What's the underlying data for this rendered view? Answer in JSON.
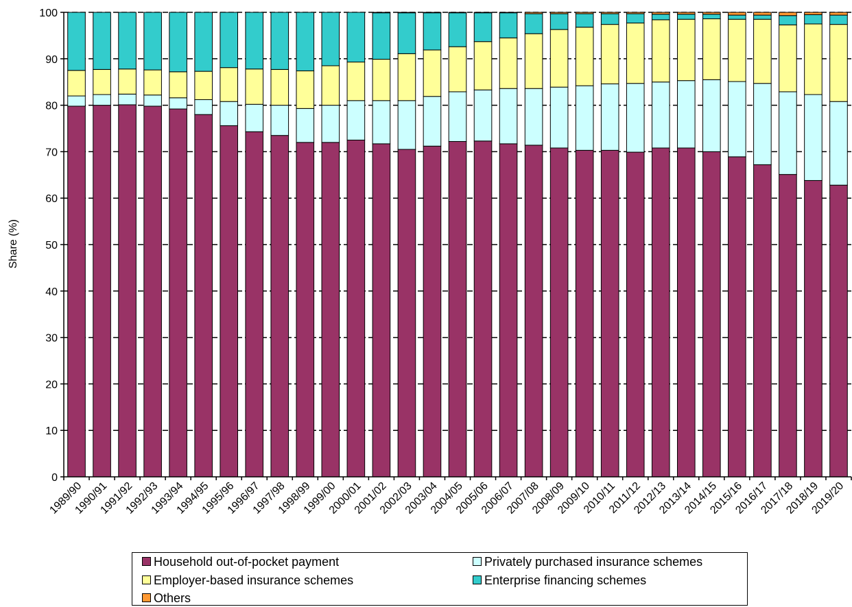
{
  "chart_data": {
    "type": "bar",
    "stacked": true,
    "ylabel": "Share (%)",
    "xlabel": "",
    "ylim": [
      0,
      100
    ],
    "yticks": [
      0,
      10,
      20,
      30,
      40,
      50,
      60,
      70,
      80,
      90,
      100
    ],
    "grid": "horizontal dashed",
    "legend_position": "bottom",
    "categories": [
      "1989/90",
      "1990/91",
      "1991/92",
      "1992/93",
      "1993/94",
      "1994/95",
      "1995/96",
      "1996/97",
      "1997/98",
      "1998/99",
      "1999/00",
      "2000/01",
      "2001/02",
      "2002/03",
      "2003/04",
      "2004/05",
      "2005/06",
      "2006/07",
      "2007/08",
      "2008/09",
      "2009/10",
      "2010/11",
      "2011/12",
      "2012/13",
      "2013/14",
      "2014/15",
      "2015/16",
      "2016/17",
      "2017/18",
      "2018/19",
      "2019/20"
    ],
    "series": [
      {
        "name": "Household out-of-pocket payment",
        "color": "#993366",
        "values": [
          79.8,
          80.0,
          80.1,
          79.8,
          79.2,
          78.0,
          75.6,
          74.3,
          73.5,
          72.0,
          72.0,
          72.5,
          71.7,
          70.5,
          71.2,
          72.2,
          72.3,
          71.7,
          71.4,
          70.8,
          70.3,
          70.3,
          69.9,
          70.8,
          70.8,
          70.0,
          68.9,
          67.2,
          65.1,
          63.8,
          62.8
        ]
      },
      {
        "name": "Privately purchased insurance schemes",
        "color": "#CCFFFF",
        "values": [
          2.2,
          2.3,
          2.3,
          2.4,
          2.4,
          3.2,
          5.2,
          5.9,
          6.5,
          7.3,
          8.0,
          8.5,
          9.3,
          10.5,
          10.7,
          10.7,
          11.0,
          11.9,
          12.2,
          13.1,
          13.9,
          14.3,
          14.8,
          14.2,
          14.5,
          15.5,
          16.2,
          17.5,
          17.8,
          18.5,
          18.0
        ]
      },
      {
        "name": "Employer-based insurance schemes",
        "color": "#FFFF99",
        "values": [
          5.5,
          5.4,
          5.4,
          5.4,
          5.6,
          6.1,
          7.3,
          7.6,
          7.7,
          8.1,
          8.5,
          8.3,
          8.9,
          10.1,
          10.0,
          9.7,
          10.4,
          10.9,
          11.8,
          12.4,
          12.6,
          12.8,
          13.0,
          13.4,
          13.2,
          13.1,
          13.4,
          13.8,
          14.4,
          15.2,
          16.6
        ]
      },
      {
        "name": "Enterprise financing schemes",
        "color": "#33CCCC",
        "values": [
          12.5,
          12.3,
          12.2,
          12.4,
          12.8,
          12.7,
          11.9,
          12.2,
          12.3,
          12.6,
          11.5,
          10.7,
          10.0,
          8.8,
          8.0,
          7.3,
          6.2,
          5.4,
          4.3,
          3.4,
          2.9,
          2.3,
          2.0,
          1.2,
          1.1,
          1.0,
          0.9,
          0.9,
          2.0,
          2.0,
          2.0
        ]
      },
      {
        "name": "Others",
        "color": "#FF9933",
        "values": [
          0.0,
          0.0,
          0.0,
          0.0,
          0.0,
          0.0,
          0.0,
          0.0,
          0.0,
          0.0,
          0.0,
          0.0,
          0.1,
          0.1,
          0.1,
          0.1,
          0.1,
          0.1,
          0.3,
          0.3,
          0.3,
          0.3,
          0.3,
          0.4,
          0.4,
          0.4,
          0.6,
          0.6,
          0.7,
          0.5,
          0.6
        ]
      }
    ]
  }
}
